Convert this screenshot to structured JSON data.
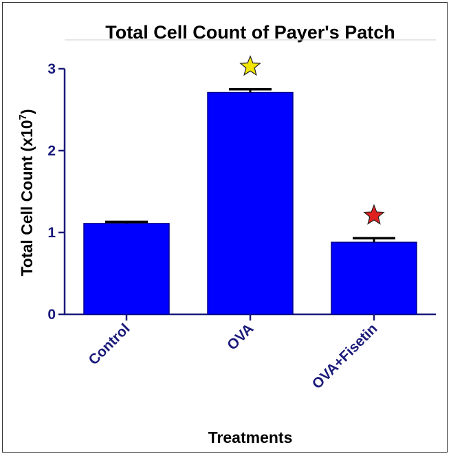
{
  "chart_data": {
    "type": "bar",
    "title": "Total Cell Count of Payer's Patch",
    "xlabel": "Treatments",
    "ylabel": "Total Cell  Count (x10",
    "ylabel_exponent": "7",
    "ylabel_close": ")",
    "categories": [
      "Control",
      "OVA",
      "OVA+Fisetin"
    ],
    "values": [
      1.11,
      2.71,
      0.88
    ],
    "errors": [
      0.02,
      0.04,
      0.05
    ],
    "significance": [
      "",
      "yellow-star",
      "red-star"
    ],
    "ylim": [
      0,
      3
    ],
    "yticks": [
      "0",
      "1",
      "2",
      "3"
    ],
    "grid": false,
    "colors": {
      "bar_fill": "#0000ff",
      "bar_stroke": "#00008b",
      "axis": "#1a1a7a",
      "tick_text": "#1a1a7a",
      "star_yellow": "#f2e600",
      "star_red": "#e02020"
    }
  }
}
